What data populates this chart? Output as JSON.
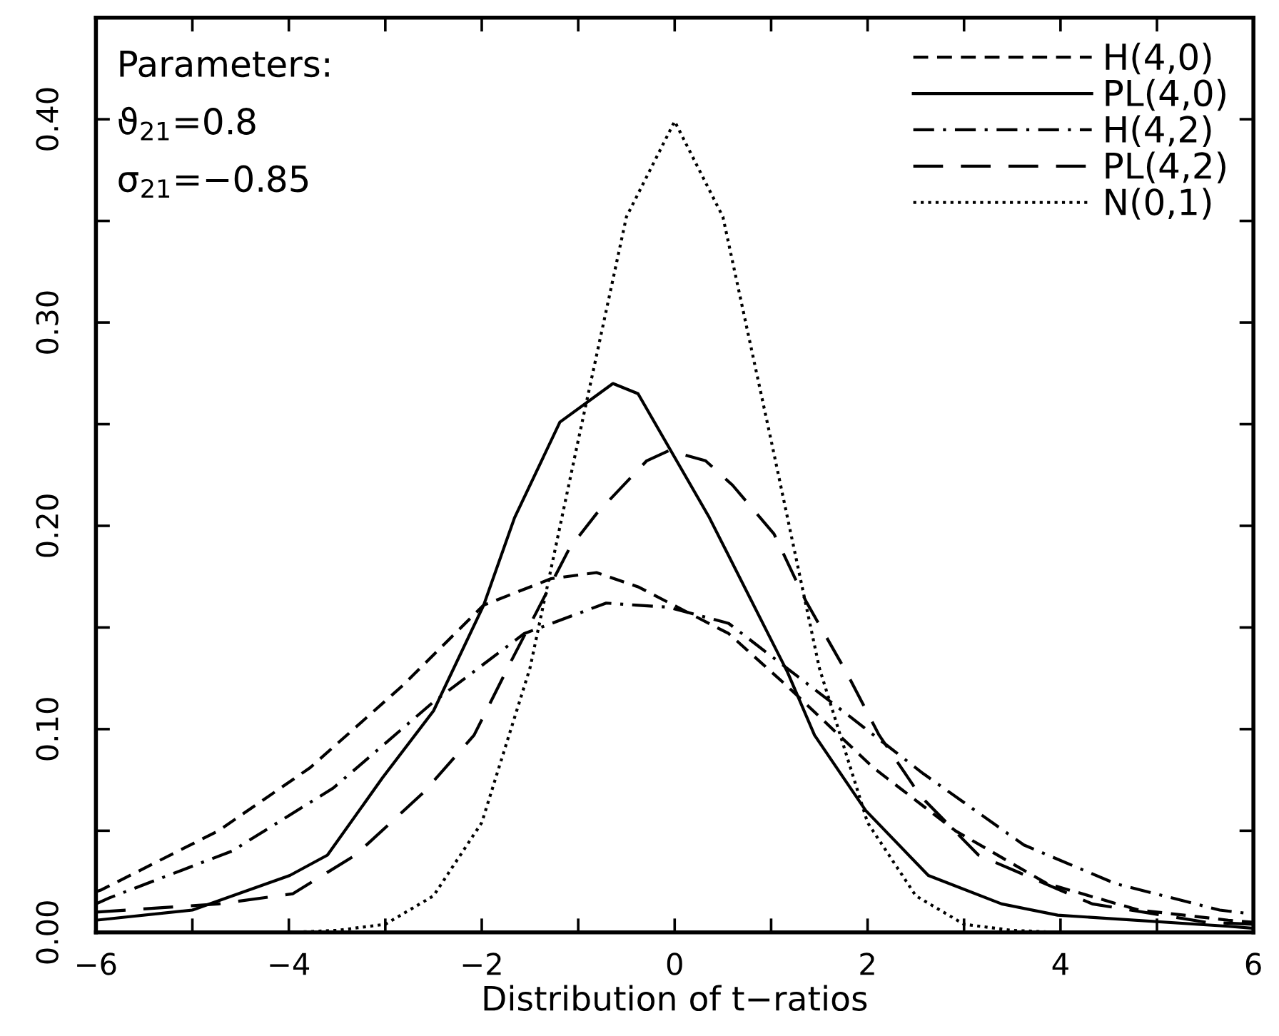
{
  "chart_data": {
    "type": "line",
    "xlabel": "Distribution of t−ratios",
    "xlim": [
      -6,
      6
    ],
    "ylim": [
      0,
      0.45
    ],
    "xticks": [
      -6,
      {
        "value": -5,
        "label": null
      },
      -4,
      {
        "value": -3,
        "label": null
      },
      -2,
      {
        "value": -1,
        "label": null
      },
      0,
      {
        "value": 1,
        "label": null
      },
      2,
      {
        "value": 3,
        "label": null
      },
      4,
      {
        "value": 5,
        "label": null
      },
      6
    ],
    "yticks": [
      {
        "value": 0,
        "label": "0.00"
      },
      {
        "value": 0.05,
        "label": null
      },
      {
        "value": 0.1,
        "label": "0.10"
      },
      {
        "value": 0.15,
        "label": null
      },
      {
        "value": 0.2,
        "label": "0.20"
      },
      {
        "value": 0.25,
        "label": null
      },
      {
        "value": 0.3,
        "label": "0.30"
      },
      {
        "value": 0.35,
        "label": null
      },
      {
        "value": 0.4,
        "label": "0.40"
      }
    ],
    "grid": false,
    "legend": "top right",
    "marker": "none",
    "annotations": [
      "Parameters:",
      "ϑ$_{21}$=0.8",
      "σ$_{21}$=−0.85"
    ],
    "series": [
      {
        "name": "H(4,0)",
        "color": "#000000",
        "line_style": "dashed",
        "x": [
          -6,
          -5.94,
          -4.73,
          -3.78,
          -2.83,
          -1.98,
          -1.28,
          -0.81,
          -0.38,
          0.56,
          1.17,
          2.06,
          2.91,
          3.86,
          4.81,
          5.74,
          6
        ],
        "values": [
          0.02,
          0.021,
          0.05,
          0.081,
          0.121,
          0.161,
          0.174,
          0.177,
          0.17,
          0.147,
          0.121,
          0.081,
          0.05,
          0.024,
          0.011,
          0.006,
          0.005
        ]
      },
      {
        "name": "PL(4,0)",
        "color": "#000000",
        "line_style": "solid",
        "x": [
          -6,
          -5,
          -3.99,
          -3.6,
          -3.03,
          -2.5,
          -1.98,
          -1.66,
          -1.19,
          -0.64,
          -0.38,
          0.36,
          1.17,
          1.45,
          1.98,
          2.63,
          3.39,
          3.97,
          5.74,
          6
        ],
        "values": [
          0.006,
          0.011,
          0.028,
          0.038,
          0.076,
          0.109,
          0.161,
          0.204,
          0.251,
          0.27,
          0.265,
          0.204,
          0.128,
          0.097,
          0.06,
          0.028,
          0.014,
          0.0085,
          0.003,
          0.002
        ]
      },
      {
        "name": "H(4,2)",
        "color": "#000000",
        "line_style": "dashdot",
        "x": [
          -6,
          -5.86,
          -4.59,
          -3.54,
          -2.51,
          -1.56,
          -0.71,
          -0.4,
          -0.07,
          0.56,
          1.74,
          2.58,
          3.62,
          4.57,
          5.65,
          6
        ],
        "values": [
          0.014,
          0.017,
          0.04,
          0.071,
          0.113,
          0.147,
          0.162,
          0.161,
          0.16,
          0.152,
          0.109,
          0.078,
          0.043,
          0.024,
          0.011,
          0.009
        ]
      },
      {
        "name": "PL(4,2)",
        "color": "#000000",
        "line_style": "longdash",
        "x": [
          -6,
          -4.73,
          -3.96,
          -3.31,
          -2.6,
          -2.08,
          -1.7,
          -1.09,
          -0.81,
          -0.29,
          -0.06,
          0.32,
          0.6,
          1.03,
          1.36,
          1.78,
          2.12,
          2.55,
          3.15,
          4.33,
          5.51,
          6
        ],
        "values": [
          0.01,
          0.014,
          0.019,
          0.038,
          0.069,
          0.097,
          0.133,
          0.189,
          0.206,
          0.232,
          0.237,
          0.232,
          0.22,
          0.196,
          0.163,
          0.128,
          0.097,
          0.067,
          0.038,
          0.014,
          0.005,
          0.004
        ]
      },
      {
        "name": "N(0,1)",
        "color": "#000000",
        "line_style": "dotted",
        "x": [
          -4,
          -3.5,
          -3,
          -2.5,
          -2,
          -1.5,
          -1,
          -0.5,
          0,
          0.5,
          1,
          1.5,
          2,
          2.5,
          3,
          3.5,
          4
        ],
        "values": [
          0.0,
          0.001,
          0.004,
          0.018,
          0.054,
          0.13,
          0.242,
          0.352,
          0.399,
          0.352,
          0.242,
          0.13,
          0.054,
          0.018,
          0.004,
          0.001,
          0.0
        ]
      }
    ]
  }
}
